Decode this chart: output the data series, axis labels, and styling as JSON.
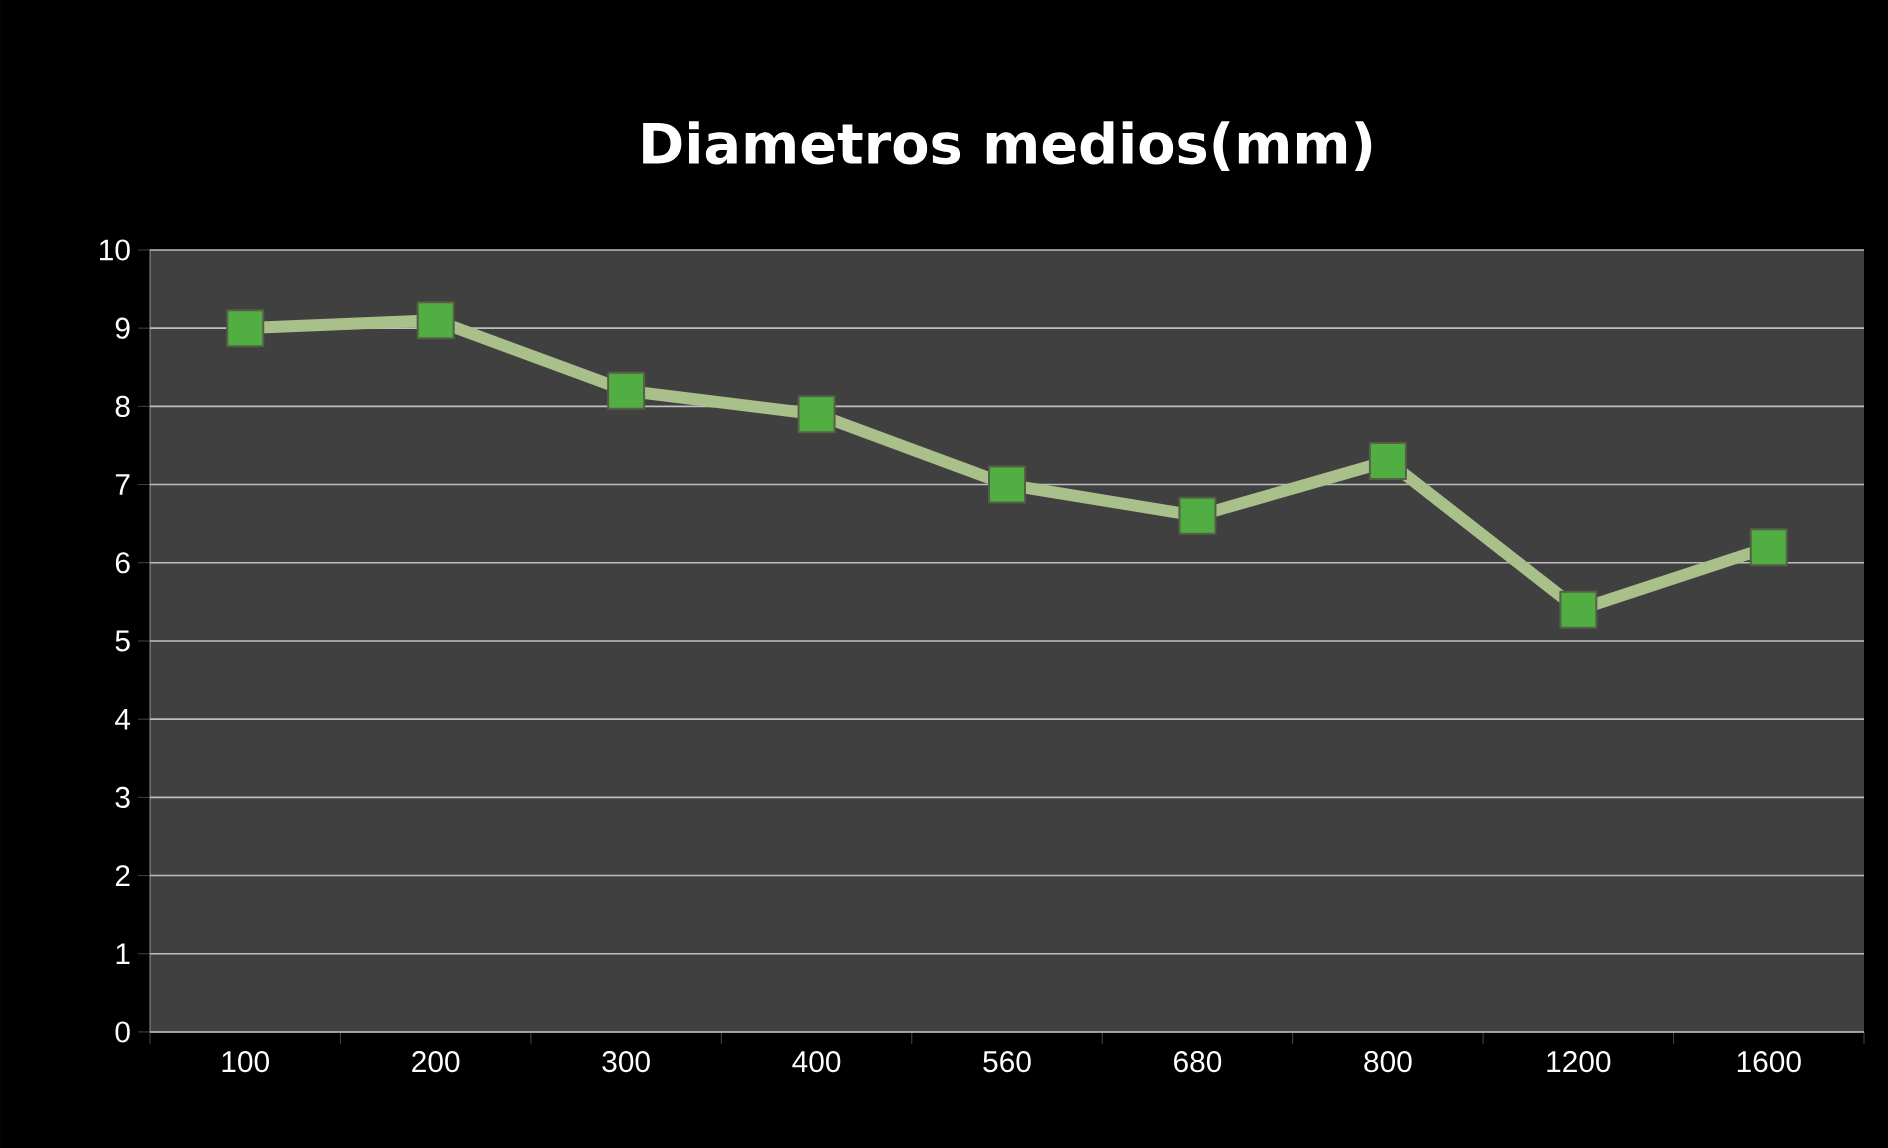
{
  "chart_data": {
    "type": "line",
    "title": "Diametros medios(mm)",
    "categories": [
      "100",
      "200",
      "300",
      "400",
      "560",
      "680",
      "800",
      "1200",
      "1600"
    ],
    "series": [
      {
        "color": "#a9c08a",
        "values": [
          9.0,
          9.1,
          8.2,
          7.9,
          7.0,
          6.6,
          7.3,
          5.4,
          6.2
        ]
      }
    ],
    "ylim": [
      0,
      10
    ],
    "yticks": [
      0,
      1,
      2,
      3,
      4,
      5,
      6,
      7,
      8,
      9,
      10
    ],
    "grid": "y",
    "marker": "square"
  }
}
